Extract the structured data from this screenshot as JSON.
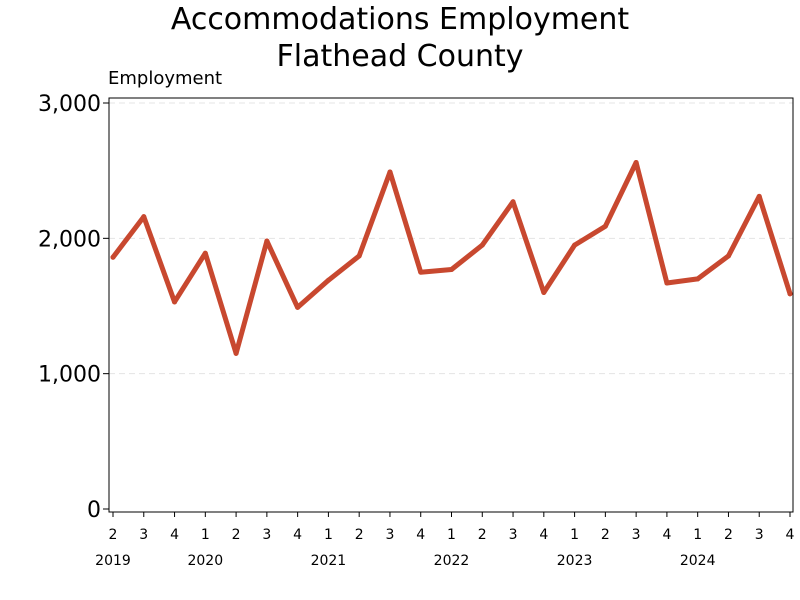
{
  "chart_data": {
    "type": "line",
    "title_lines": [
      "Accommodations Employment",
      "Flathead County"
    ],
    "title": "Accommodations Employment Flathead County",
    "ylabel": "Employment",
    "xlabel": "",
    "ylim": [
      0,
      3000
    ],
    "yticks": [
      "0",
      "1,000",
      "2,000",
      "3,000"
    ],
    "ytick_values": [
      0,
      1000,
      2000,
      3000
    ],
    "grid": true,
    "line_color": "#c8482f",
    "x": [
      "2019 Q2",
      "2019 Q3",
      "2019 Q4",
      "2020 Q1",
      "2020 Q2",
      "2020 Q3",
      "2020 Q4",
      "2021 Q1",
      "2021 Q2",
      "2021 Q3",
      "2021 Q4",
      "2022 Q1",
      "2022 Q2",
      "2022 Q3",
      "2022 Q4",
      "2023 Q1",
      "2023 Q2",
      "2023 Q3",
      "2023 Q4",
      "2024 Q1",
      "2024 Q2",
      "2024 Q3",
      "2024 Q4"
    ],
    "quarter_labels": [
      "2",
      "3",
      "4",
      "1",
      "2",
      "3",
      "4",
      "1",
      "2",
      "3",
      "4",
      "1",
      "2",
      "3",
      "4",
      "1",
      "2",
      "3",
      "4",
      "1",
      "2",
      "3",
      "4"
    ],
    "year_labels": [
      {
        "label": "2019",
        "index": 0
      },
      {
        "label": "2020",
        "index": 3
      },
      {
        "label": "2021",
        "index": 7
      },
      {
        "label": "2022",
        "index": 11
      },
      {
        "label": "2023",
        "index": 15
      },
      {
        "label": "2024",
        "index": 19
      }
    ],
    "series": [
      {
        "values": [
          1860,
          2160,
          1530,
          1890,
          1150,
          1980,
          1490,
          1690,
          1870,
          2490,
          1750,
          1770,
          1950,
          2270,
          1600,
          1950,
          2090,
          2560,
          1670,
          1700,
          1870,
          2310,
          1590
        ]
      }
    ]
  }
}
